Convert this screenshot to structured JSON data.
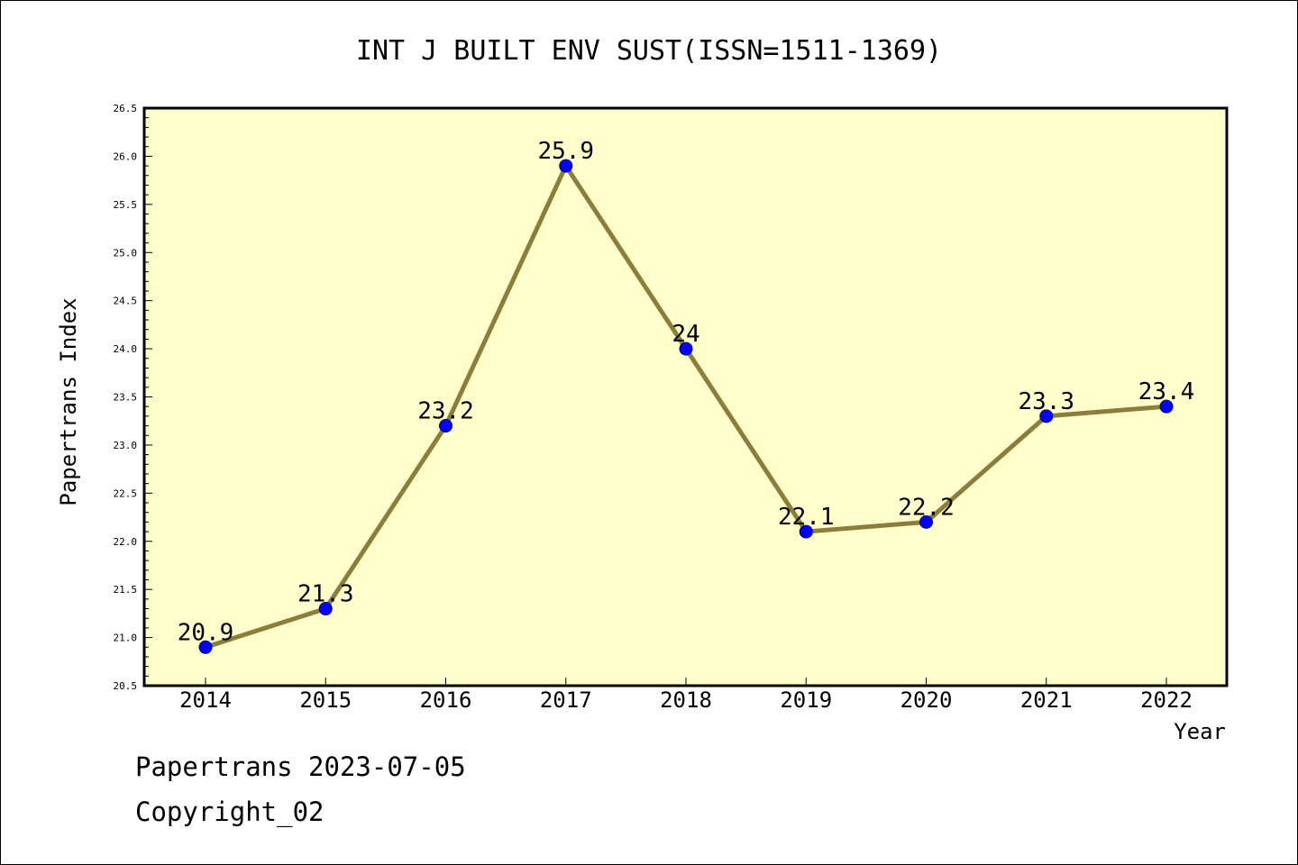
{
  "chart_data": {
    "type": "line",
    "title": "INT J BUILT ENV SUST(ISSN=1511-1369)",
    "xlabel": "Year",
    "ylabel": "Papertrans Index",
    "categories": [
      "2014",
      "2015",
      "2016",
      "2017",
      "2018",
      "2019",
      "2020",
      "2021",
      "2022"
    ],
    "series": [
      {
        "values": [
          20.9,
          21.3,
          23.2,
          25.9,
          24.0,
          22.1,
          22.2,
          23.3,
          23.4
        ],
        "data_labels": [
          "20.9",
          "21.3",
          "23.2",
          "25.9",
          "24",
          "22.1",
          "22.2",
          "23.3",
          "23.4"
        ]
      }
    ],
    "ylim": [
      20.5,
      26.5
    ],
    "yticks": [
      "20.5",
      "21.0",
      "21.5",
      "22.0",
      "22.5",
      "23.0",
      "23.5",
      "24.0",
      "24.5",
      "25.0",
      "25.5",
      "26.0",
      "26.5"
    ],
    "grid": false,
    "colors": {
      "plot_background": "#ffffcc",
      "line": "#8b7d3a",
      "marker": "#0000ff"
    }
  },
  "footer": {
    "line1": "Papertrans 2023-07-05",
    "line2": "Copyright_02"
  }
}
